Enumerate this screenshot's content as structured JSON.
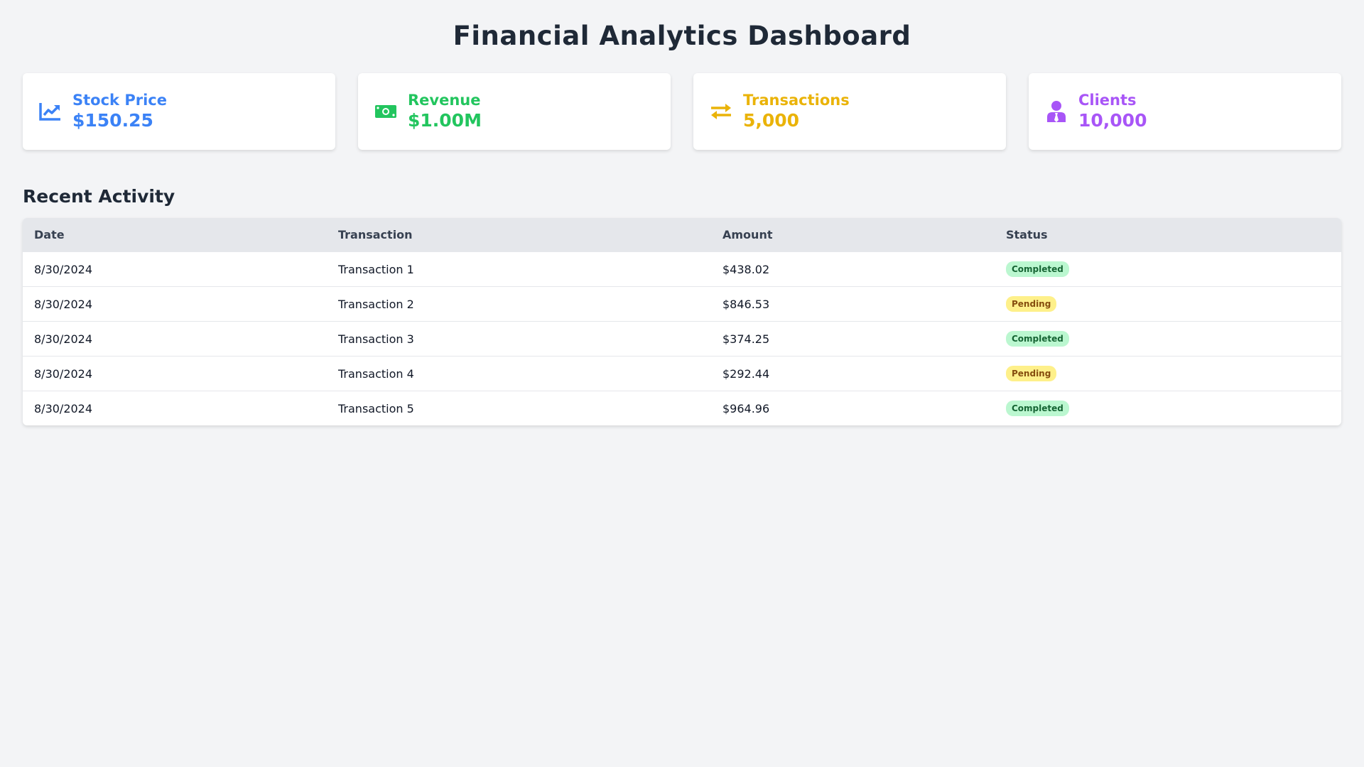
{
  "title": "Financial Analytics Dashboard",
  "cards": [
    {
      "label": "Stock Price",
      "value": "$150.25",
      "icon": "chart-line-icon",
      "color": "#3b82f6"
    },
    {
      "label": "Revenue",
      "value": "$1.00M",
      "icon": "money-bill-icon",
      "color": "#22c55e"
    },
    {
      "label": "Transactions",
      "value": "5,000",
      "icon": "exchange-arrows-icon",
      "color": "#eab308"
    },
    {
      "label": "Clients",
      "value": "10,000",
      "icon": "user-tie-icon",
      "color": "#a855f7"
    }
  ],
  "activity": {
    "title": "Recent Activity",
    "headers": [
      "Date",
      "Transaction",
      "Amount",
      "Status"
    ],
    "rows": [
      {
        "date": "8/30/2024",
        "transaction": "Transaction 1",
        "amount": "$438.02",
        "status": "Completed"
      },
      {
        "date": "8/30/2024",
        "transaction": "Transaction 2",
        "amount": "$846.53",
        "status": "Pending"
      },
      {
        "date": "8/30/2024",
        "transaction": "Transaction 3",
        "amount": "$374.25",
        "status": "Completed"
      },
      {
        "date": "8/30/2024",
        "transaction": "Transaction 4",
        "amount": "$292.44",
        "status": "Pending"
      },
      {
        "date": "8/30/2024",
        "transaction": "Transaction 5",
        "amount": "$964.96",
        "status": "Completed"
      }
    ]
  }
}
